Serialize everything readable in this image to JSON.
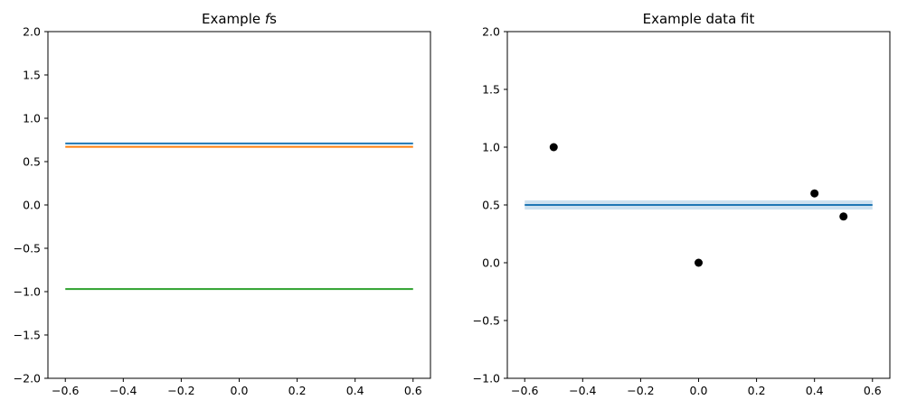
{
  "chart_data": [
    {
      "type": "line",
      "title": "Example ",
      "title_italic": "f",
      "title_suffix": "s",
      "xlabel": "",
      "ylabel": "",
      "xlim": [
        -0.66,
        0.66
      ],
      "ylim": [
        -2.0,
        2.0
      ],
      "xticks": [
        -0.6,
        -0.4,
        -0.2,
        0.0,
        0.2,
        0.4,
        0.6
      ],
      "xtick_labels": [
        "−0.6",
        "−0.4",
        "−0.2",
        "0.0",
        "0.2",
        "0.4",
        "0.6"
      ],
      "yticks": [
        -2.0,
        -1.5,
        -1.0,
        -0.5,
        0.0,
        0.5,
        1.0,
        1.5,
        2.0
      ],
      "ytick_labels": [
        "−2.0",
        "−1.5",
        "−1.0",
        "−0.5",
        "0.0",
        "0.5",
        "1.0",
        "1.5",
        "2.0"
      ],
      "grid": false,
      "series": [
        {
          "color": "#1f77b4",
          "x": [
            -0.6,
            -0.4,
            -0.2,
            0.0,
            0.2,
            0.4,
            0.6
          ],
          "y": [
            0.71,
            0.71,
            0.71,
            0.71,
            0.71,
            0.71,
            0.71
          ]
        },
        {
          "color": "#ff7f0e",
          "x": [
            -0.6,
            -0.4,
            -0.2,
            0.0,
            0.2,
            0.4,
            0.6
          ],
          "y": [
            0.67,
            0.67,
            0.67,
            0.67,
            0.67,
            0.67,
            0.67
          ]
        },
        {
          "color": "#2ca02c",
          "x": [
            -0.6,
            -0.4,
            -0.2,
            0.0,
            0.2,
            0.4,
            0.6
          ],
          "y": [
            -0.97,
            -0.97,
            -0.97,
            -0.97,
            -0.97,
            -0.97,
            -0.97
          ]
        }
      ]
    },
    {
      "type": "scatter",
      "title": "Example data fit",
      "xlabel": "",
      "ylabel": "",
      "xlim": [
        -0.66,
        0.66
      ],
      "ylim": [
        -1.0,
        2.0
      ],
      "xticks": [
        -0.6,
        -0.4,
        -0.2,
        0.0,
        0.2,
        0.4,
        0.6
      ],
      "xtick_labels": [
        "−0.6",
        "−0.4",
        "−0.2",
        "0.0",
        "0.2",
        "0.4",
        "0.6"
      ],
      "yticks": [
        -1.0,
        -0.5,
        0.0,
        0.5,
        1.0,
        1.5,
        2.0
      ],
      "ytick_labels": [
        "−1.0",
        "−0.5",
        "0.0",
        "0.5",
        "1.0",
        "1.5",
        "2.0"
      ],
      "grid": false,
      "fit_line": {
        "color": "#1f77b4",
        "x": [
          -0.6,
          0.6
        ],
        "y": [
          0.5,
          0.5
        ]
      },
      "fit_band": {
        "color": "#1f77b4",
        "x": [
          -0.6,
          0.6
        ],
        "lower": [
          0.46,
          0.46
        ],
        "upper": [
          0.54,
          0.54
        ]
      },
      "points": {
        "color": "#000000",
        "x": [
          -0.5,
          0.0,
          0.4,
          0.5
        ],
        "y": [
          1.0,
          0.0,
          0.6,
          0.4
        ]
      }
    }
  ]
}
